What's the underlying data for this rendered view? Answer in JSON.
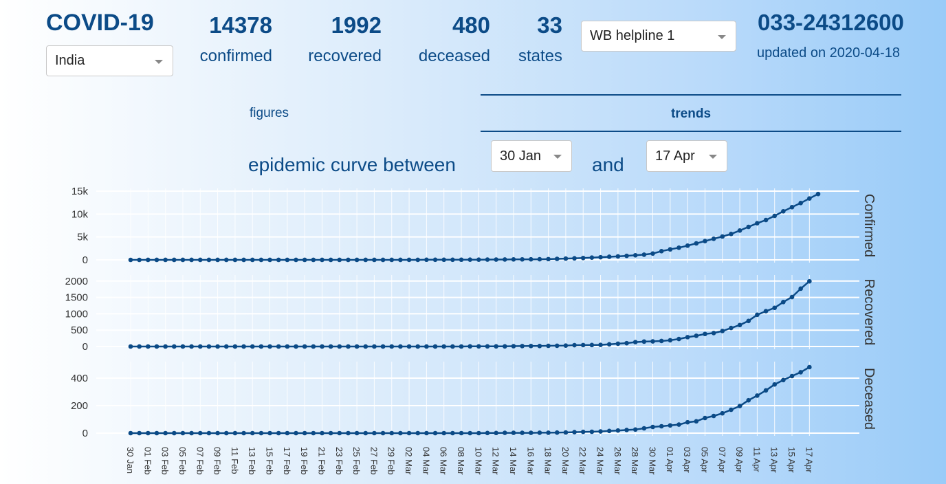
{
  "header": {
    "title": "COVID-19",
    "country": "India",
    "stats": [
      {
        "value": "14378",
        "label": "confirmed"
      },
      {
        "value": "1992",
        "label": "recovered"
      },
      {
        "value": "480",
        "label": "deceased"
      },
      {
        "value": "33",
        "label": "states"
      }
    ],
    "helpline_select": "WB helpline 1",
    "phone": "033-24312600",
    "updated": "updated on 2020-04-18"
  },
  "tabs": {
    "figures": "figures",
    "trends": "trends",
    "active": "trends"
  },
  "curve": {
    "prefix": "epidemic curve between",
    "from": "30 Jan",
    "joiner": "and",
    "to": "17 Apr"
  },
  "chart_data": {
    "type": "line",
    "x_tick_labels": [
      "30 Jan",
      "01 Feb",
      "03 Feb",
      "05 Feb",
      "07 Feb",
      "09 Feb",
      "11 Feb",
      "13 Feb",
      "15 Feb",
      "17 Feb",
      "19 Feb",
      "21 Feb",
      "23 Feb",
      "25 Feb",
      "27 Feb",
      "29 Feb",
      "02 Mar",
      "04 Mar",
      "06 Mar",
      "08 Mar",
      "10 Mar",
      "12 Mar",
      "14 Mar",
      "16 Mar",
      "18 Mar",
      "20 Mar",
      "22 Mar",
      "24 Mar",
      "26 Mar",
      "28 Mar",
      "30 Mar",
      "01 Apr",
      "03 Apr",
      "05 Apr",
      "07 Apr",
      "09 Apr",
      "11 Apr",
      "13 Apr",
      "15 Apr",
      "17 Apr"
    ],
    "x_start": "2020-01-30",
    "x_end": "2020-04-17",
    "color": "#0b4a86",
    "series": [
      {
        "name": "Confirmed",
        "ylim": [
          0,
          15000
        ],
        "yticks": [
          0,
          5000,
          10000,
          15000
        ],
        "ytick_labels": [
          "0",
          "5k",
          "10k",
          "15k"
        ],
        "values": [
          1,
          1,
          2,
          3,
          3,
          3,
          3,
          3,
          3,
          3,
          3,
          3,
          3,
          3,
          3,
          3,
          3,
          3,
          3,
          3,
          3,
          3,
          3,
          3,
          3,
          3,
          3,
          3,
          3,
          3,
          3,
          3,
          5,
          6,
          28,
          30,
          31,
          34,
          39,
          43,
          50,
          60,
          73,
          82,
          100,
          113,
          119,
          140,
          170,
          223,
          283,
          340,
          410,
          500,
          580,
          680,
          760,
          880,
          1000,
          1140,
          1380,
          1900,
          2290,
          2650,
          3100,
          3600,
          4100,
          4600,
          5100,
          5650,
          6400,
          7200,
          8000,
          8700,
          9600,
          10600,
          11500,
          12400,
          13400,
          14378
        ]
      },
      {
        "name": "Recovered",
        "ylim": [
          0,
          2100
        ],
        "yticks": [
          0,
          500,
          1000,
          1500,
          2000
        ],
        "ytick_labels": [
          "0",
          "500",
          "1000",
          "1500",
          "2000"
        ],
        "values": [
          0,
          0,
          0,
          0,
          0,
          0,
          0,
          0,
          0,
          0,
          0,
          0,
          0,
          0,
          0,
          0,
          0,
          0,
          0,
          0,
          0,
          0,
          0,
          0,
          0,
          0,
          0,
          0,
          0,
          0,
          0,
          0,
          0,
          0,
          0,
          0,
          0,
          0,
          0,
          4,
          4,
          4,
          4,
          4,
          10,
          13,
          14,
          15,
          20,
          23,
          27,
          40,
          43,
          45,
          50,
          67,
          86,
          102,
          134,
          150,
          157,
          169,
          191,
          229,
          286,
          326,
          383,
          411,
          473,
          565,
          655,
          781,
          969,
          1080,
          1181,
          1359,
          1511,
          1767,
          1992
        ]
      },
      {
        "name": "Deceased",
        "ylim": [
          0,
          500
        ],
        "yticks": [
          0,
          200,
          400
        ],
        "ytick_labels": [
          "0",
          "200",
          "400"
        ],
        "values": [
          0,
          0,
          0,
          0,
          0,
          0,
          0,
          0,
          0,
          0,
          0,
          0,
          0,
          0,
          0,
          0,
          0,
          0,
          0,
          0,
          0,
          0,
          0,
          0,
          0,
          0,
          0,
          0,
          0,
          0,
          0,
          0,
          0,
          0,
          0,
          0,
          0,
          0,
          0,
          0,
          0,
          1,
          1,
          2,
          2,
          2,
          2,
          3,
          3,
          4,
          5,
          7,
          9,
          10,
          12,
          16,
          19,
          23,
          26,
          35,
          45,
          50,
          56,
          62,
          79,
          86,
          110,
          125,
          144,
          170,
          197,
          239,
          273,
          311,
          354,
          386,
          415,
          443,
          480
        ]
      }
    ]
  }
}
